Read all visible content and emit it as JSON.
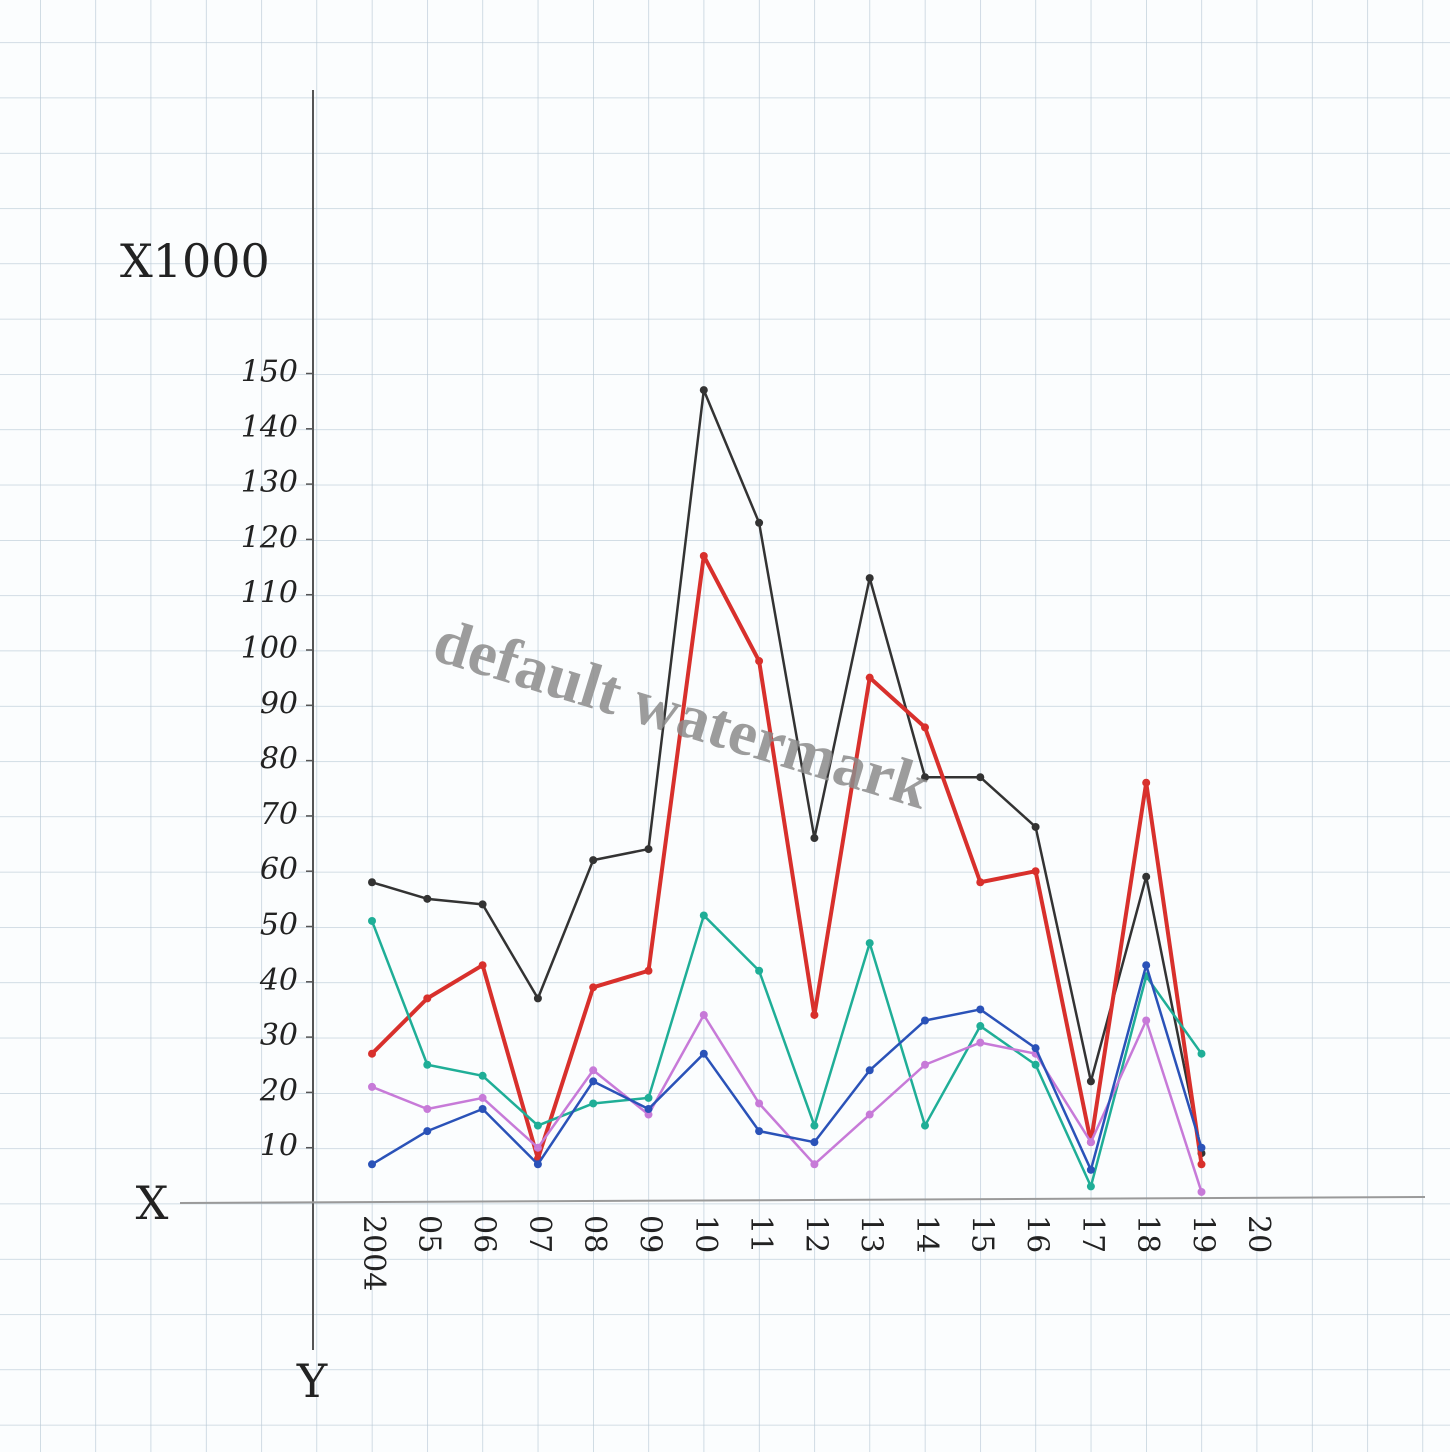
{
  "chart_data": {
    "type": "line",
    "y_label": "X1000",
    "x_axis_letter": "X",
    "y_axis_letter": "Y",
    "watermark": "default watermark",
    "categories": [
      "2004",
      "05",
      "06",
      "07",
      "08",
      "09",
      "10",
      "11",
      "12",
      "13",
      "14",
      "15",
      "16",
      "17",
      "18",
      "19",
      "20"
    ],
    "series": [
      {
        "color": "#333333",
        "values": [
          58,
          55,
          54,
          37,
          62,
          64,
          147,
          123,
          66,
          113,
          77,
          77,
          68,
          22,
          59,
          9,
          null
        ]
      },
      {
        "color": "#d8302c",
        "values": [
          27,
          37,
          43,
          8,
          39,
          42,
          117,
          98,
          34,
          95,
          86,
          58,
          60,
          11,
          76,
          7,
          null
        ]
      },
      {
        "color": "#1fae97",
        "values": [
          51,
          25,
          23,
          14,
          18,
          19,
          52,
          42,
          14,
          47,
          14,
          32,
          25,
          3,
          41,
          27,
          null
        ]
      },
      {
        "color": "#c77ad8",
        "values": [
          21,
          17,
          19,
          10,
          24,
          16,
          34,
          18,
          7,
          16,
          25,
          29,
          27,
          11,
          33,
          2,
          null
        ]
      },
      {
        "color": "#2a52b8",
        "values": [
          7,
          13,
          17,
          7,
          22,
          17,
          27,
          13,
          11,
          24,
          33,
          35,
          28,
          6,
          43,
          10,
          null
        ]
      }
    ],
    "ylim": [
      0,
      200
    ],
    "yticks": [
      10,
      20,
      30,
      40,
      50,
      60,
      70,
      80,
      90,
      100,
      110,
      120,
      130,
      140,
      150
    ],
    "grid": false
  }
}
